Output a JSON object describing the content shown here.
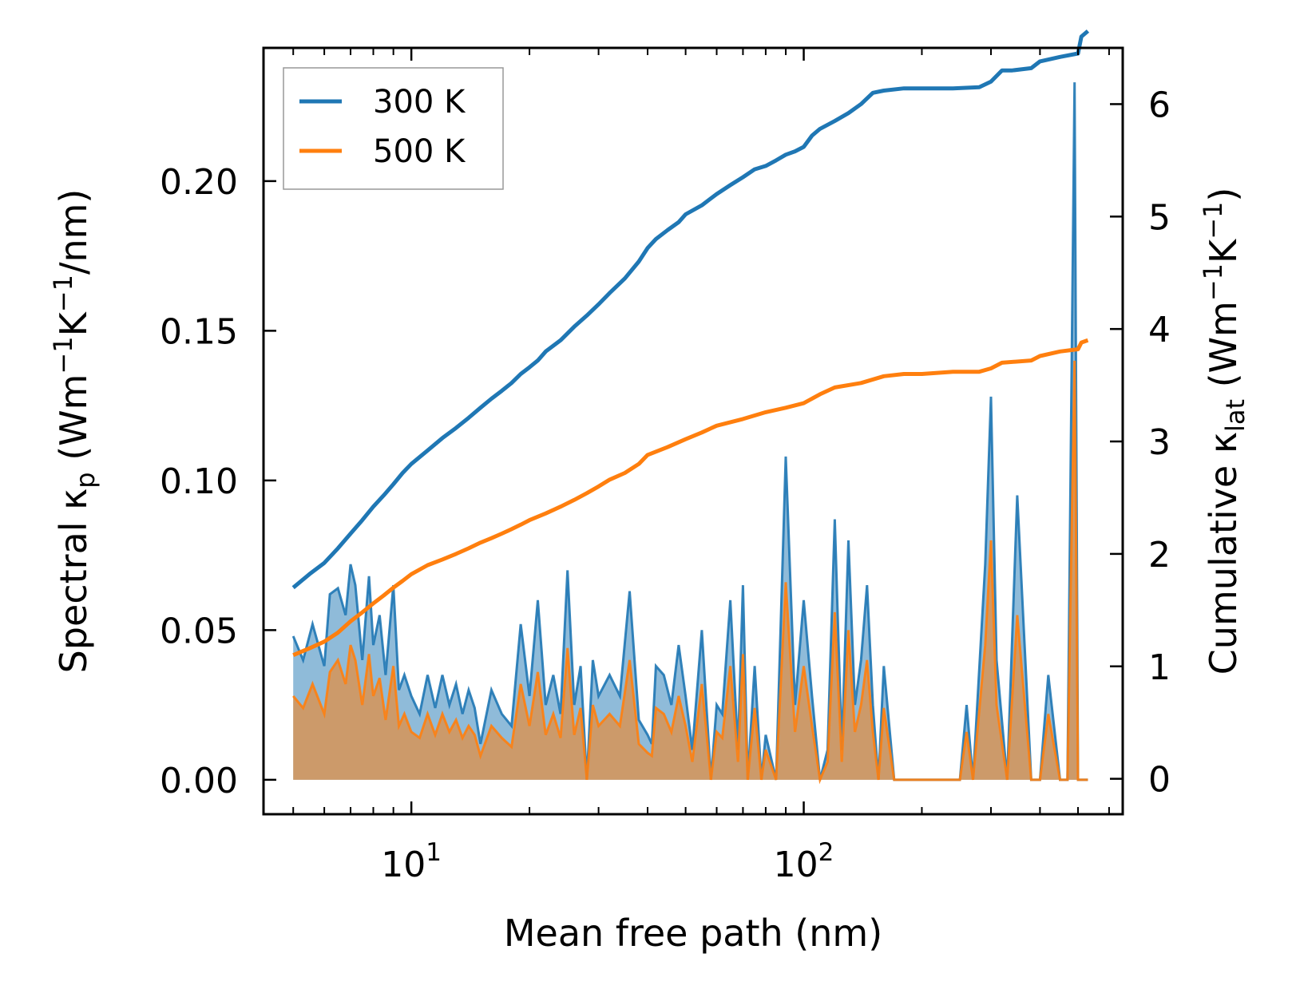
{
  "chart_data": {
    "type": "line",
    "xlabel": "Mean free path (nm)",
    "ylabel_left": "Spectral κp (Wm−1K−1/nm)",
    "ylabel_right": "Cumulative κlat (Wm−1K−1)",
    "xscale": "log",
    "xlim": [
      4.2,
      650
    ],
    "ylim_left": [
      -0.0115,
      0.2445
    ],
    "ylim_right": [
      -0.315,
      6.5
    ],
    "x_ticks": [
      {
        "value": 10,
        "base": "10",
        "exp": "1"
      },
      {
        "value": 100,
        "base": "10",
        "exp": "2"
      }
    ],
    "y_ticks_left": [
      "0.00",
      "0.05",
      "0.10",
      "0.15",
      "0.20"
    ],
    "y_tick_values_left": [
      0,
      0.05,
      0.1,
      0.15,
      0.2
    ],
    "y_ticks_right": [
      "0",
      "1",
      "2",
      "3",
      "4",
      "5",
      "6"
    ],
    "y_tick_values_right": [
      0,
      1,
      2,
      3,
      4,
      5,
      6
    ],
    "legend": {
      "position": "upper-left",
      "entries": [
        "300 K",
        "500 K"
      ]
    },
    "colors": {
      "300K": "#1f77b4",
      "500K": "#ff7f0e"
    },
    "cumulative": [
      {
        "name": "300 K",
        "axis": "right",
        "x": [
          5.0,
          5.5,
          6.0,
          6.5,
          7.0,
          7.5,
          8.0,
          8.5,
          9.0,
          9.5,
          10.0,
          11.0,
          12.0,
          13.0,
          14.0,
          15.0,
          16.0,
          17.0,
          18.0,
          19.0,
          20.0,
          21.0,
          22.0,
          24.0,
          26.0,
          28.0,
          30.0,
          32.0,
          35.0,
          38.0,
          40.0,
          42.0,
          45.0,
          48.0,
          50.0,
          55.0,
          60.0,
          65.0,
          70.0,
          75.0,
          80.0,
          85.0,
          90.0,
          95.0,
          100.0,
          105.0,
          110.0,
          120.0,
          130.0,
          140.0,
          150.0,
          160.0,
          180.0,
          200.0,
          240.0,
          280.0,
          300.0,
          320.0,
          340.0,
          380.0,
          400.0,
          450.0,
          500.0,
          510.0,
          530.0
        ],
        "y": [
          1.7,
          1.82,
          1.92,
          2.05,
          2.18,
          2.3,
          2.42,
          2.52,
          2.62,
          2.72,
          2.8,
          2.92,
          3.03,
          3.12,
          3.21,
          3.3,
          3.38,
          3.45,
          3.52,
          3.6,
          3.66,
          3.72,
          3.8,
          3.9,
          4.02,
          4.12,
          4.22,
          4.32,
          4.45,
          4.6,
          4.72,
          4.8,
          4.88,
          4.95,
          5.02,
          5.1,
          5.2,
          5.28,
          5.35,
          5.42,
          5.45,
          5.5,
          5.55,
          5.58,
          5.62,
          5.72,
          5.78,
          5.85,
          5.92,
          6.0,
          6.1,
          6.12,
          6.14,
          6.14,
          6.14,
          6.15,
          6.2,
          6.3,
          6.3,
          6.32,
          6.38,
          6.42,
          6.45,
          6.6,
          6.65
        ]
      },
      {
        "name": "500 K",
        "axis": "right",
        "x": [
          5.0,
          5.5,
          6.0,
          6.5,
          7.0,
          7.5,
          8.0,
          8.5,
          9.0,
          9.5,
          10.0,
          11.0,
          12.0,
          13.0,
          14.0,
          15.0,
          16.0,
          17.0,
          18.0,
          19.0,
          20.0,
          22.0,
          24.0,
          26.0,
          28.0,
          30.0,
          32.0,
          35.0,
          38.0,
          40.0,
          45.0,
          50.0,
          55.0,
          60.0,
          70.0,
          80.0,
          90.0,
          100.0,
          110.0,
          120.0,
          140.0,
          160.0,
          180.0,
          200.0,
          240.0,
          280.0,
          300.0,
          320.0,
          380.0,
          400.0,
          450.0,
          500.0,
          510.0,
          530.0
        ],
        "y": [
          1.1,
          1.16,
          1.22,
          1.3,
          1.4,
          1.48,
          1.56,
          1.63,
          1.7,
          1.76,
          1.82,
          1.9,
          1.95,
          2.0,
          2.05,
          2.1,
          2.14,
          2.18,
          2.22,
          2.26,
          2.3,
          2.36,
          2.42,
          2.48,
          2.54,
          2.6,
          2.66,
          2.72,
          2.8,
          2.88,
          2.95,
          3.02,
          3.08,
          3.14,
          3.2,
          3.26,
          3.3,
          3.34,
          3.42,
          3.48,
          3.52,
          3.58,
          3.6,
          3.6,
          3.62,
          3.62,
          3.65,
          3.7,
          3.72,
          3.76,
          3.8,
          3.82,
          3.88,
          3.9
        ]
      }
    ],
    "spectral": [
      {
        "name": "300 K",
        "axis": "left",
        "x": [
          5.0,
          5.3,
          5.6,
          6.0,
          6.2,
          6.5,
          6.8,
          7.0,
          7.2,
          7.5,
          7.8,
          8.0,
          8.3,
          8.6,
          9.0,
          9.3,
          9.6,
          10.0,
          10.5,
          11.0,
          11.5,
          12.0,
          12.5,
          13.0,
          13.5,
          14.0,
          14.5,
          15.0,
          16.0,
          17.0,
          18.0,
          19.0,
          20.0,
          21.0,
          22.0,
          23.0,
          24.0,
          25.0,
          26.0,
          27.0,
          28.0,
          29.0,
          30.0,
          32.0,
          34.0,
          36.0,
          38.0,
          40.0,
          41.0,
          42.0,
          44.0,
          46.0,
          48.0,
          50.0,
          52.0,
          55.0,
          58.0,
          60.0,
          62.0,
          65.0,
          68.0,
          70.0,
          72.0,
          75.0,
          78.0,
          80.0,
          85.0,
          90.0,
          95.0,
          100.0,
          105.0,
          110.0,
          115.0,
          120.0,
          125.0,
          130.0,
          135.0,
          140.0,
          145.0,
          150.0,
          155.0,
          160.0,
          170.0,
          180.0,
          190.0,
          200.0,
          250.0,
          260.0,
          270.0,
          290.0,
          300.0,
          310.0,
          330.0,
          350.0,
          380.0,
          400.0,
          420.0,
          450.0,
          470.0,
          490.0,
          500.0,
          505.0,
          510.0,
          530.0
        ],
        "y": [
          0.048,
          0.04,
          0.052,
          0.038,
          0.062,
          0.064,
          0.055,
          0.072,
          0.065,
          0.04,
          0.068,
          0.045,
          0.055,
          0.035,
          0.065,
          0.03,
          0.035,
          0.028,
          0.022,
          0.035,
          0.024,
          0.035,
          0.025,
          0.032,
          0.022,
          0.03,
          0.024,
          0.012,
          0.03,
          0.022,
          0.018,
          0.052,
          0.028,
          0.06,
          0.025,
          0.035,
          0.022,
          0.07,
          0.025,
          0.038,
          0.0,
          0.04,
          0.028,
          0.035,
          0.028,
          0.063,
          0.02,
          0.015,
          0.012,
          0.038,
          0.035,
          0.025,
          0.045,
          0.028,
          0.01,
          0.05,
          0.0,
          0.025,
          0.022,
          0.06,
          0.01,
          0.065,
          0.0,
          0.038,
          0.0,
          0.015,
          0.0,
          0.108,
          0.025,
          0.06,
          0.028,
          0.0,
          0.01,
          0.087,
          0.01,
          0.08,
          0.025,
          0.04,
          0.065,
          0.025,
          0.0,
          0.038,
          0.0,
          0.0,
          0.0,
          0.0,
          0.0,
          0.025,
          0.0,
          0.072,
          0.128,
          0.04,
          0.0,
          0.095,
          0.0,
          0.0,
          0.035,
          0.0,
          0.0,
          0.233,
          0.0,
          0.0,
          0.0,
          0.0
        ]
      },
      {
        "name": "500 K",
        "axis": "left",
        "x": [
          5.0,
          5.3,
          5.6,
          6.0,
          6.2,
          6.5,
          6.8,
          7.0,
          7.2,
          7.5,
          7.8,
          8.0,
          8.3,
          8.6,
          9.0,
          9.3,
          9.6,
          10.0,
          10.5,
          11.0,
          11.5,
          12.0,
          12.5,
          13.0,
          13.5,
          14.0,
          14.5,
          15.0,
          16.0,
          17.0,
          18.0,
          19.0,
          20.0,
          21.0,
          22.0,
          23.0,
          24.0,
          25.0,
          26.0,
          27.0,
          28.0,
          29.0,
          30.0,
          32.0,
          34.0,
          36.0,
          38.0,
          40.0,
          41.0,
          42.0,
          44.0,
          46.0,
          48.0,
          50.0,
          52.0,
          55.0,
          58.0,
          60.0,
          62.0,
          65.0,
          68.0,
          70.0,
          72.0,
          75.0,
          78.0,
          80.0,
          85.0,
          90.0,
          95.0,
          100.0,
          105.0,
          110.0,
          115.0,
          120.0,
          125.0,
          130.0,
          135.0,
          140.0,
          145.0,
          150.0,
          155.0,
          160.0,
          170.0,
          180.0,
          190.0,
          200.0,
          250.0,
          260.0,
          270.0,
          290.0,
          300.0,
          310.0,
          330.0,
          350.0,
          380.0,
          400.0,
          420.0,
          450.0,
          470.0,
          490.0,
          500.0,
          505.0,
          510.0,
          530.0
        ],
        "y": [
          0.028,
          0.024,
          0.032,
          0.022,
          0.036,
          0.04,
          0.032,
          0.045,
          0.04,
          0.025,
          0.042,
          0.028,
          0.034,
          0.02,
          0.038,
          0.018,
          0.022,
          0.016,
          0.014,
          0.022,
          0.015,
          0.022,
          0.016,
          0.02,
          0.014,
          0.018,
          0.015,
          0.008,
          0.018,
          0.014,
          0.011,
          0.032,
          0.018,
          0.036,
          0.015,
          0.022,
          0.014,
          0.044,
          0.015,
          0.024,
          0.0,
          0.025,
          0.018,
          0.022,
          0.018,
          0.04,
          0.012,
          0.009,
          0.008,
          0.024,
          0.022,
          0.016,
          0.028,
          0.018,
          0.006,
          0.032,
          0.0,
          0.016,
          0.014,
          0.038,
          0.006,
          0.042,
          0.0,
          0.024,
          0.0,
          0.01,
          0.0,
          0.066,
          0.016,
          0.038,
          0.018,
          0.0,
          0.006,
          0.056,
          0.006,
          0.05,
          0.016,
          0.025,
          0.04,
          0.016,
          0.0,
          0.024,
          0.0,
          0.0,
          0.0,
          0.0,
          0.0,
          0.016,
          0.0,
          0.045,
          0.08,
          0.025,
          0.0,
          0.055,
          0.0,
          0.0,
          0.022,
          0.0,
          0.0,
          0.14,
          0.0,
          0.0,
          0.0,
          0.0
        ]
      }
    ]
  }
}
